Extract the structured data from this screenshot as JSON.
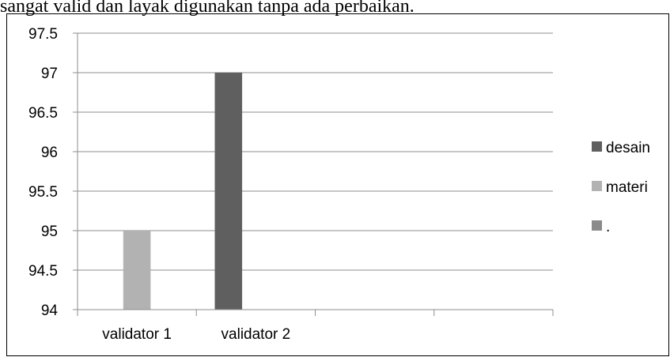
{
  "caption": "sangat valid dan layak digunakan tanpa ada perbaikan.",
  "chart_data": {
    "type": "bar",
    "categories": [
      "validator 1",
      "validator 2",
      "",
      ""
    ],
    "series": [
      {
        "name": "desain",
        "color": "#5f5f5f",
        "values": [
          null,
          97,
          null,
          null
        ]
      },
      {
        "name": "materi",
        "color": "#b2b2b2",
        "values": [
          95,
          null,
          null,
          null
        ]
      },
      {
        "name": ".",
        "color": "#8a8a8a",
        "values": [
          null,
          null,
          null,
          null
        ]
      }
    ],
    "ylim": [
      94,
      97.5
    ],
    "yticks": [
      "94",
      "94.5",
      "95",
      "95.5",
      "96",
      "96.5",
      "97",
      "97.5"
    ],
    "grid": true,
    "legend_position": "right"
  }
}
